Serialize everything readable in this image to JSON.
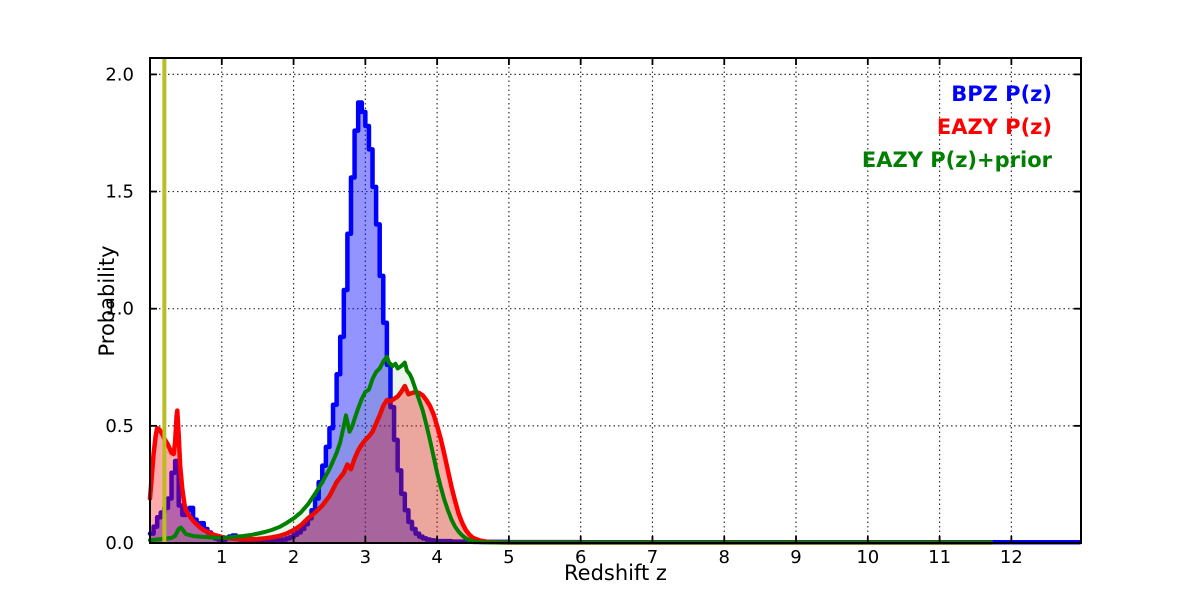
{
  "chart_data": {
    "type": "line",
    "title": "",
    "xlabel": "Redshift z",
    "ylabel": "Probability",
    "xlim": [
      0,
      12.97
    ],
    "ylim": [
      0,
      2.07
    ],
    "x_ticks": [
      1,
      2,
      3,
      4,
      5,
      6,
      7,
      8,
      9,
      10,
      11,
      12
    ],
    "y_ticks": [
      {
        "label": "0.0",
        "value": 0
      },
      {
        "label": "0.5",
        "value": 0.5
      },
      {
        "label": "1.0",
        "value": 1.0
      },
      {
        "label": "1.5",
        "value": 1.5
      },
      {
        "label": "2.0",
        "value": 2.0
      }
    ],
    "grid": "dotted",
    "legend_position": "upper right",
    "vline": {
      "x": 0.2,
      "color": "#bcbd22"
    },
    "series": [
      {
        "name": "BPZ P(z)",
        "color": "#0000ff",
        "fill": "rgba(0,0,255,0.42)",
        "line_width": 4.5,
        "style": "steps",
        "points": [
          [
            0,
            0.04
          ],
          [
            0.05,
            0.07
          ],
          [
            0.1,
            0.11
          ],
          [
            0.15,
            0.13
          ],
          [
            0.2,
            0.15
          ],
          [
            0.25,
            0.19
          ],
          [
            0.3,
            0.3
          ],
          [
            0.35,
            0.35
          ],
          [
            0.4,
            0.16
          ],
          [
            0.45,
            0.12
          ],
          [
            0.5,
            0.14
          ],
          [
            0.55,
            0.15
          ],
          [
            0.6,
            0.1
          ],
          [
            0.65,
            0.08
          ],
          [
            0.7,
            0.085
          ],
          [
            0.75,
            0.06
          ],
          [
            0.8,
            0.045
          ],
          [
            0.85,
            0.03
          ],
          [
            0.9,
            0.02
          ],
          [
            0.95,
            0.015
          ],
          [
            1.0,
            0.012
          ],
          [
            1.05,
            0.02
          ],
          [
            1.1,
            0.028
          ],
          [
            1.15,
            0.032
          ],
          [
            1.2,
            0.022
          ],
          [
            1.25,
            0.014
          ],
          [
            1.3,
            0.01
          ],
          [
            1.35,
            0.008
          ],
          [
            1.4,
            0.007
          ],
          [
            1.45,
            0.006
          ],
          [
            1.5,
            0.006
          ],
          [
            1.55,
            0.006
          ],
          [
            1.6,
            0.007
          ],
          [
            1.65,
            0.008
          ],
          [
            1.7,
            0.009
          ],
          [
            1.75,
            0.01
          ],
          [
            1.8,
            0.012
          ],
          [
            1.85,
            0.015
          ],
          [
            1.9,
            0.02
          ],
          [
            1.95,
            0.025
          ],
          [
            2.0,
            0.035
          ],
          [
            2.05,
            0.045
          ],
          [
            2.1,
            0.06
          ],
          [
            2.15,
            0.08
          ],
          [
            2.2,
            0.105
          ],
          [
            2.25,
            0.14
          ],
          [
            2.3,
            0.19
          ],
          [
            2.35,
            0.26
          ],
          [
            2.4,
            0.33
          ],
          [
            2.45,
            0.41
          ],
          [
            2.5,
            0.49
          ],
          [
            2.55,
            0.59
          ],
          [
            2.6,
            0.72
          ],
          [
            2.65,
            0.88
          ],
          [
            2.7,
            1.08
          ],
          [
            2.75,
            1.32
          ],
          [
            2.8,
            1.56
          ],
          [
            2.85,
            1.76
          ],
          [
            2.9,
            1.88
          ],
          [
            2.95,
            1.84
          ],
          [
            3.0,
            1.78
          ],
          [
            3.05,
            1.68
          ],
          [
            3.1,
            1.52
          ],
          [
            3.15,
            1.36
          ],
          [
            3.2,
            1.14
          ],
          [
            3.25,
            0.94
          ],
          [
            3.3,
            0.76
          ],
          [
            3.35,
            0.58
          ],
          [
            3.4,
            0.44
          ],
          [
            3.45,
            0.31
          ],
          [
            3.5,
            0.21
          ],
          [
            3.55,
            0.14
          ],
          [
            3.6,
            0.09
          ],
          [
            3.65,
            0.06
          ],
          [
            3.7,
            0.04
          ],
          [
            3.75,
            0.027
          ],
          [
            3.8,
            0.02
          ],
          [
            3.85,
            0.015
          ],
          [
            3.9,
            0.012
          ],
          [
            3.95,
            0.01
          ],
          [
            4.0,
            0.008
          ],
          [
            4.2,
            0.006
          ],
          [
            4.5,
            0.005
          ],
          [
            5.0,
            0.004
          ],
          [
            6.0,
            0.003
          ],
          [
            8.0,
            0.003
          ],
          [
            10.0,
            0.003
          ],
          [
            12.0,
            0.003
          ],
          [
            12.95,
            0.003
          ]
        ]
      },
      {
        "name": "EAZY P(z)",
        "color": "#ff0000",
        "fill": "rgba(255,0,0,0.33)",
        "line_width": 4.5,
        "style": "line",
        "points": [
          [
            0,
            0.19
          ],
          [
            0.05,
            0.38
          ],
          [
            0.08,
            0.46
          ],
          [
            0.1,
            0.49
          ],
          [
            0.13,
            0.485
          ],
          [
            0.15,
            0.475
          ],
          [
            0.18,
            0.46
          ],
          [
            0.2,
            0.445
          ],
          [
            0.25,
            0.42
          ],
          [
            0.3,
            0.385
          ],
          [
            0.33,
            0.38
          ],
          [
            0.35,
            0.43
          ],
          [
            0.37,
            0.54
          ],
          [
            0.38,
            0.565
          ],
          [
            0.4,
            0.46
          ],
          [
            0.42,
            0.33
          ],
          [
            0.45,
            0.23
          ],
          [
            0.48,
            0.165
          ],
          [
            0.5,
            0.14
          ],
          [
            0.55,
            0.115
          ],
          [
            0.6,
            0.095
          ],
          [
            0.65,
            0.08
          ],
          [
            0.7,
            0.065
          ],
          [
            0.75,
            0.055
          ],
          [
            0.8,
            0.048
          ],
          [
            0.85,
            0.04
          ],
          [
            0.9,
            0.034
          ],
          [
            0.95,
            0.03
          ],
          [
            1.0,
            0.026
          ],
          [
            1.1,
            0.02
          ],
          [
            1.2,
            0.017
          ],
          [
            1.3,
            0.016
          ],
          [
            1.4,
            0.016
          ],
          [
            1.5,
            0.017
          ],
          [
            1.6,
            0.02
          ],
          [
            1.7,
            0.024
          ],
          [
            1.8,
            0.03
          ],
          [
            1.9,
            0.04
          ],
          [
            2.0,
            0.055
          ],
          [
            2.1,
            0.075
          ],
          [
            2.2,
            0.105
          ],
          [
            2.3,
            0.13
          ],
          [
            2.4,
            0.16
          ],
          [
            2.5,
            0.2
          ],
          [
            2.6,
            0.26
          ],
          [
            2.7,
            0.3
          ],
          [
            2.75,
            0.335
          ],
          [
            2.8,
            0.315
          ],
          [
            2.85,
            0.36
          ],
          [
            2.9,
            0.395
          ],
          [
            2.95,
            0.42
          ],
          [
            3.0,
            0.44
          ],
          [
            3.05,
            0.455
          ],
          [
            3.1,
            0.475
          ],
          [
            3.15,
            0.51
          ],
          [
            3.2,
            0.545
          ],
          [
            3.25,
            0.585
          ],
          [
            3.3,
            0.61
          ],
          [
            3.35,
            0.605
          ],
          [
            3.4,
            0.615
          ],
          [
            3.45,
            0.625
          ],
          [
            3.5,
            0.645
          ],
          [
            3.55,
            0.67
          ],
          [
            3.6,
            0.635
          ],
          [
            3.65,
            0.64
          ],
          [
            3.7,
            0.645
          ],
          [
            3.75,
            0.64
          ],
          [
            3.8,
            0.63
          ],
          [
            3.85,
            0.61
          ],
          [
            3.9,
            0.585
          ],
          [
            3.95,
            0.55
          ],
          [
            4.0,
            0.5
          ],
          [
            4.05,
            0.445
          ],
          [
            4.1,
            0.38
          ],
          [
            4.15,
            0.31
          ],
          [
            4.2,
            0.24
          ],
          [
            4.25,
            0.18
          ],
          [
            4.3,
            0.125
          ],
          [
            4.35,
            0.085
          ],
          [
            4.4,
            0.055
          ],
          [
            4.45,
            0.035
          ],
          [
            4.5,
            0.022
          ],
          [
            4.6,
            0.01
          ],
          [
            4.7,
            0.005
          ],
          [
            4.8,
            0.003
          ],
          [
            5.0,
            0.002
          ],
          [
            6.0,
            0.002
          ],
          [
            8.0,
            0.002
          ],
          [
            10.0,
            0.002
          ],
          [
            11.72,
            0.002
          ]
        ]
      },
      {
        "name": "EAZY P(z)+prior",
        "color": "#007f00",
        "fill": "rgba(0,128,0,0.08)",
        "line_width": 4,
        "style": "line",
        "points": [
          [
            0,
            0.012
          ],
          [
            0.1,
            0.015
          ],
          [
            0.2,
            0.018
          ],
          [
            0.3,
            0.022
          ],
          [
            0.35,
            0.03
          ],
          [
            0.4,
            0.06
          ],
          [
            0.43,
            0.066
          ],
          [
            0.46,
            0.055
          ],
          [
            0.5,
            0.038
          ],
          [
            0.6,
            0.03
          ],
          [
            0.7,
            0.027
          ],
          [
            0.8,
            0.025
          ],
          [
            0.9,
            0.023
          ],
          [
            1.0,
            0.022
          ],
          [
            1.1,
            0.024
          ],
          [
            1.2,
            0.027
          ],
          [
            1.3,
            0.03
          ],
          [
            1.4,
            0.034
          ],
          [
            1.5,
            0.04
          ],
          [
            1.6,
            0.047
          ],
          [
            1.7,
            0.056
          ],
          [
            1.8,
            0.068
          ],
          [
            1.9,
            0.085
          ],
          [
            2.0,
            0.105
          ],
          [
            2.1,
            0.13
          ],
          [
            2.2,
            0.165
          ],
          [
            2.3,
            0.21
          ],
          [
            2.4,
            0.26
          ],
          [
            2.5,
            0.315
          ],
          [
            2.6,
            0.385
          ],
          [
            2.65,
            0.43
          ],
          [
            2.7,
            0.5
          ],
          [
            2.73,
            0.545
          ],
          [
            2.78,
            0.475
          ],
          [
            2.82,
            0.5
          ],
          [
            2.85,
            0.53
          ],
          [
            2.9,
            0.575
          ],
          [
            2.95,
            0.615
          ],
          [
            3.0,
            0.645
          ],
          [
            3.05,
            0.655
          ],
          [
            3.1,
            0.7
          ],
          [
            3.15,
            0.73
          ],
          [
            3.2,
            0.745
          ],
          [
            3.25,
            0.775
          ],
          [
            3.3,
            0.795
          ],
          [
            3.33,
            0.77
          ],
          [
            3.38,
            0.755
          ],
          [
            3.42,
            0.765
          ],
          [
            3.45,
            0.745
          ],
          [
            3.5,
            0.755
          ],
          [
            3.55,
            0.77
          ],
          [
            3.58,
            0.735
          ],
          [
            3.62,
            0.72
          ],
          [
            3.65,
            0.7
          ],
          [
            3.7,
            0.655
          ],
          [
            3.75,
            0.61
          ],
          [
            3.8,
            0.565
          ],
          [
            3.85,
            0.505
          ],
          [
            3.9,
            0.44
          ],
          [
            3.95,
            0.37
          ],
          [
            4.0,
            0.3
          ],
          [
            4.05,
            0.24
          ],
          [
            4.1,
            0.185
          ],
          [
            4.15,
            0.14
          ],
          [
            4.2,
            0.1
          ],
          [
            4.25,
            0.07
          ],
          [
            4.3,
            0.048
          ],
          [
            4.35,
            0.032
          ],
          [
            4.4,
            0.02
          ],
          [
            4.45,
            0.012
          ],
          [
            4.5,
            0.007
          ],
          [
            4.6,
            0.003
          ],
          [
            4.8,
            0.002
          ],
          [
            5.0,
            0.002
          ],
          [
            6.0,
            0.002
          ],
          [
            8.0,
            0.002
          ],
          [
            10.0,
            0.002
          ],
          [
            11.72,
            0.002
          ]
        ]
      }
    ]
  }
}
